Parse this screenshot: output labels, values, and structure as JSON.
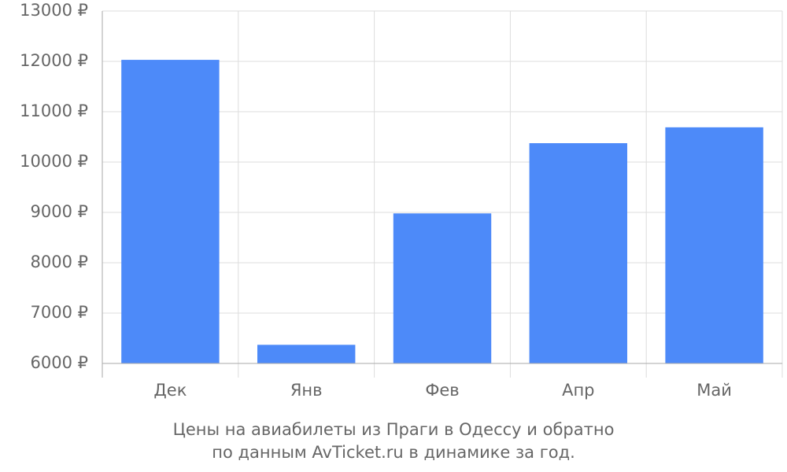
{
  "chart_data": {
    "type": "bar",
    "caption": [
      "Цены на авиабилеты из Праги в Одессу и обратно",
      "по данным AvTicket.ru в динамике за год."
    ],
    "categories": [
      "Дек",
      "Янв",
      "Фев",
      "Апр",
      "Май"
    ],
    "values": [
      12030,
      6370,
      8980,
      10375,
      10690
    ],
    "color": "#4d8af9",
    "ylim": [
      6000,
      13000
    ],
    "yticks": [
      {
        "value": 6000,
        "label": "6000 ₽"
      },
      {
        "value": 7000,
        "label": "7000 ₽"
      },
      {
        "value": 8000,
        "label": "8000 ₽"
      },
      {
        "value": 9000,
        "label": "9000 ₽"
      },
      {
        "value": 10000,
        "label": "10000 ₽"
      },
      {
        "value": 11000,
        "label": "11000 ₽"
      },
      {
        "value": 12000,
        "label": "12000 ₽"
      },
      {
        "value": 13000,
        "label": "13000 ₽"
      }
    ],
    "grid": true
  }
}
